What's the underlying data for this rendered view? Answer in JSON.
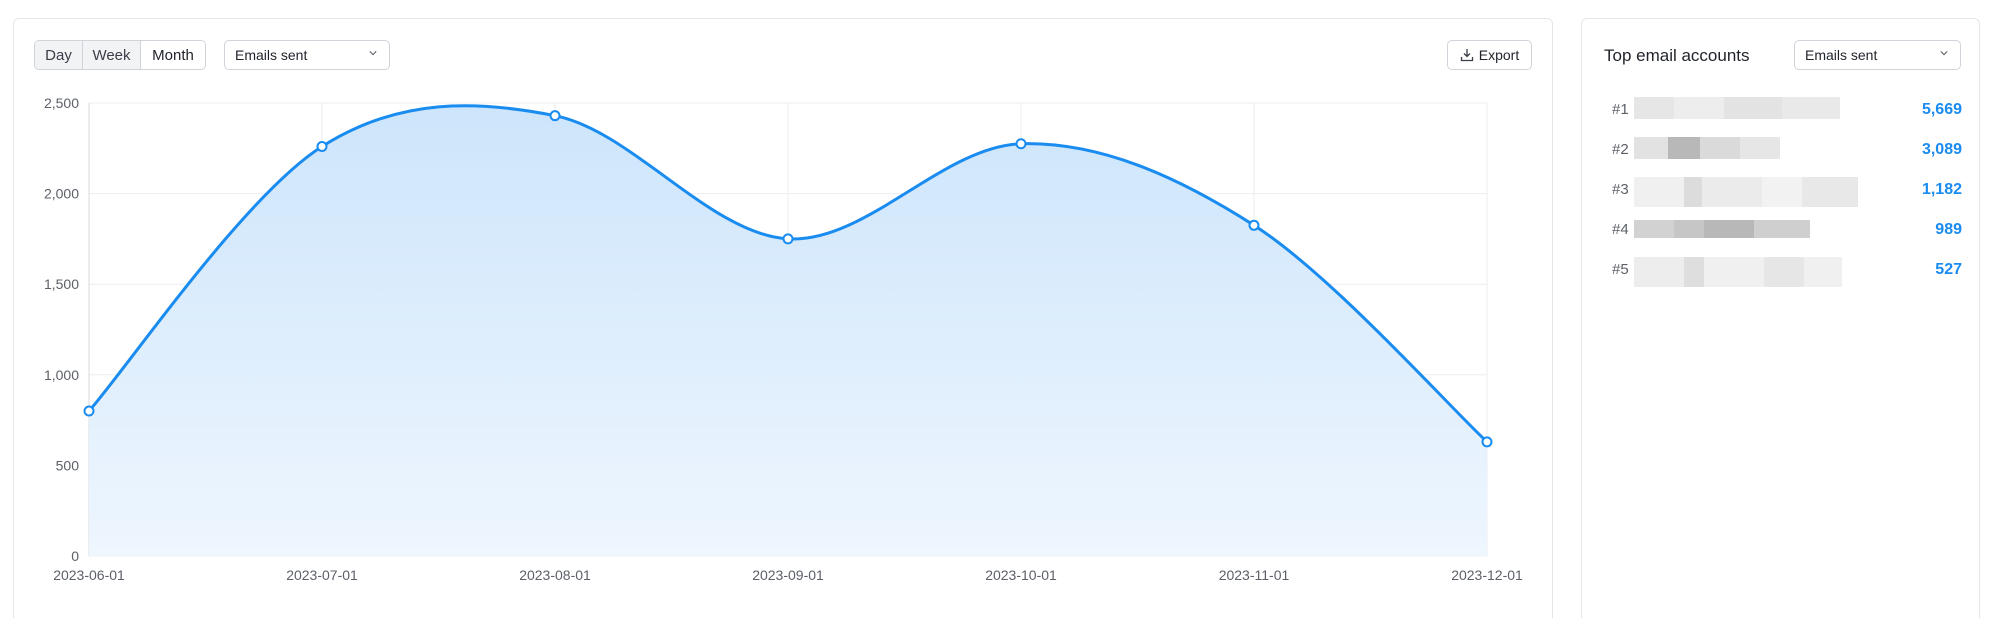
{
  "toolbar": {
    "periods": [
      "Day",
      "Week",
      "Month"
    ],
    "active_period": "Month",
    "metric_select": "Emails sent",
    "export_label": "Export"
  },
  "chart_data": {
    "type": "area",
    "x": [
      "2023-06-01",
      "2023-07-01",
      "2023-08-01",
      "2023-09-01",
      "2023-10-01",
      "2023-11-01",
      "2023-12-01"
    ],
    "series": [
      {
        "values": [
          800,
          2260,
          2430,
          1750,
          2275,
          1825,
          630
        ]
      }
    ],
    "ylim": [
      0,
      2500
    ],
    "yticks": [
      "0",
      "500",
      "1,000",
      "1,500",
      "2,000",
      "2,500"
    ],
    "grid": true,
    "colors": {
      "line": "#1a8cf0",
      "fill_top": "#cde5fb",
      "fill_bottom": "#eef6fe"
    }
  },
  "side_panel": {
    "title": "Top email accounts",
    "metric_select": "Emails sent",
    "accounts": [
      {
        "rank": "#1",
        "value": "5,669"
      },
      {
        "rank": "#2",
        "value": "3,089"
      },
      {
        "rank": "#3",
        "value": "1,182"
      },
      {
        "rank": "#4",
        "value": "989"
      },
      {
        "rank": "#5",
        "value": "527"
      }
    ]
  },
  "colors": {
    "accent": "#1a8cf0",
    "border": "#e4e6ea"
  }
}
